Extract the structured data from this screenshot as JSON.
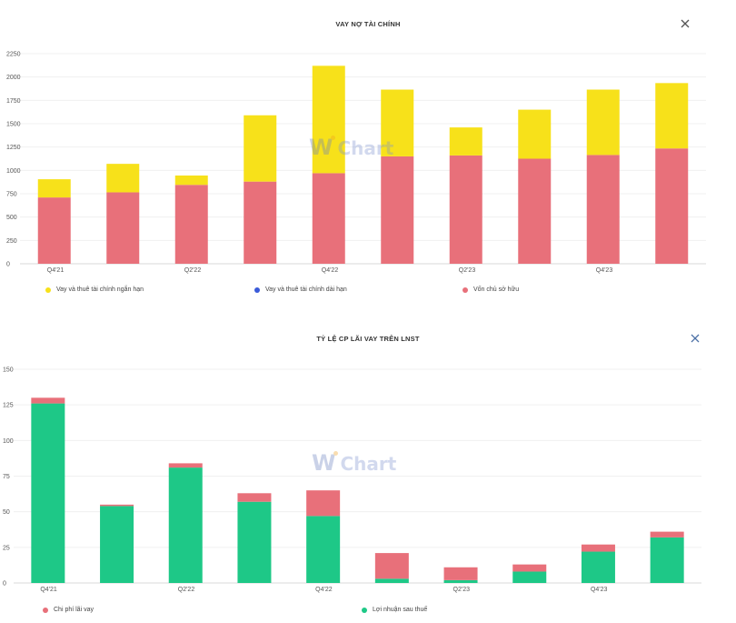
{
  "charts": [
    {
      "title": "VAY NỢ TÀI CHÍNH",
      "close_icon": "close-icon",
      "watermark": {
        "w": "W",
        "rest": "Chart"
      },
      "legend": [
        {
          "label": "Vay và thuê tài chính ngắn hạn",
          "color": "#f7e11a"
        },
        {
          "label": "Vay và thuê tài chính dài hạn",
          "color": "#3a5bd9"
        },
        {
          "label": "Vốn chủ sở hữu",
          "color": "#e8707a"
        }
      ]
    },
    {
      "title": "TỶ LỆ CP LÃI VAY TRÊN LNST",
      "close_icon": "close-icon",
      "watermark": {
        "w": "W",
        "rest": "Chart"
      },
      "legend": [
        {
          "label": "Chi phí lãi vay",
          "color": "#e8707a"
        },
        {
          "label": "Lợi nhuận sau thuế",
          "color": "#1ec887"
        }
      ]
    }
  ],
  "chart_data": [
    {
      "type": "bar",
      "stacked": true,
      "title": "VAY NỢ TÀI CHÍNH",
      "categories": [
        "Q4'21",
        "Q1'22",
        "Q2'22",
        "Q3'22",
        "Q4'22",
        "Q1'23",
        "Q2'23",
        "Q3'23",
        "Q4'23",
        "Q1'24"
      ],
      "x_tick_labels": [
        "Q4'21",
        "",
        "Q2'22",
        "",
        "Q4'22",
        "",
        "Q2'23",
        "",
        "Q4'23",
        ""
      ],
      "y_ticks": [
        0,
        250,
        500,
        750,
        1000,
        1250,
        1500,
        1750,
        2000,
        2250
      ],
      "ylim": [
        0,
        2250
      ],
      "grid": true,
      "legend_position": "bottom",
      "series": [
        {
          "name": "Vốn chủ sở hữu",
          "color": "#e8707a",
          "values": [
            710,
            765,
            845,
            880,
            970,
            1150,
            1160,
            1125,
            1165,
            1235
          ]
        },
        {
          "name": "Vay và thuê tài chính dài hạn",
          "color": "#3a5bd9",
          "values": [
            0,
            0,
            0,
            0,
            0,
            0,
            0,
            0,
            0,
            0
          ]
        },
        {
          "name": "Vay và thuê tài chính ngắn hạn",
          "color": "#f7e11a",
          "values": [
            195,
            305,
            100,
            710,
            1150,
            715,
            300,
            525,
            700,
            700
          ]
        }
      ]
    },
    {
      "type": "bar",
      "stacked": true,
      "title": "TỶ LỆ CP LÃI VAY TRÊN LNST",
      "categories": [
        "Q4'21",
        "Q1'22",
        "Q2'22",
        "Q3'22",
        "Q4'22",
        "Q1'23",
        "Q2'23",
        "Q3'23",
        "Q4'23",
        "Q1'24"
      ],
      "x_tick_labels": [
        "Q4'21",
        "",
        "Q2'22",
        "",
        "Q4'22",
        "",
        "Q2'23",
        "",
        "Q4'23",
        ""
      ],
      "y_ticks": [
        0,
        25,
        50,
        75,
        100,
        125,
        150
      ],
      "ylim": [
        0,
        150
      ],
      "grid": true,
      "legend_position": "bottom",
      "series": [
        {
          "name": "Lợi nhuận sau thuế",
          "color": "#1ec887",
          "values": [
            126,
            54,
            81,
            57,
            47,
            3,
            2,
            8,
            22,
            32
          ]
        },
        {
          "name": "Chi phí lãi vay",
          "color": "#e8707a",
          "values": [
            4,
            1,
            3,
            6,
            18,
            18,
            9,
            5,
            5,
            4
          ]
        }
      ]
    }
  ]
}
